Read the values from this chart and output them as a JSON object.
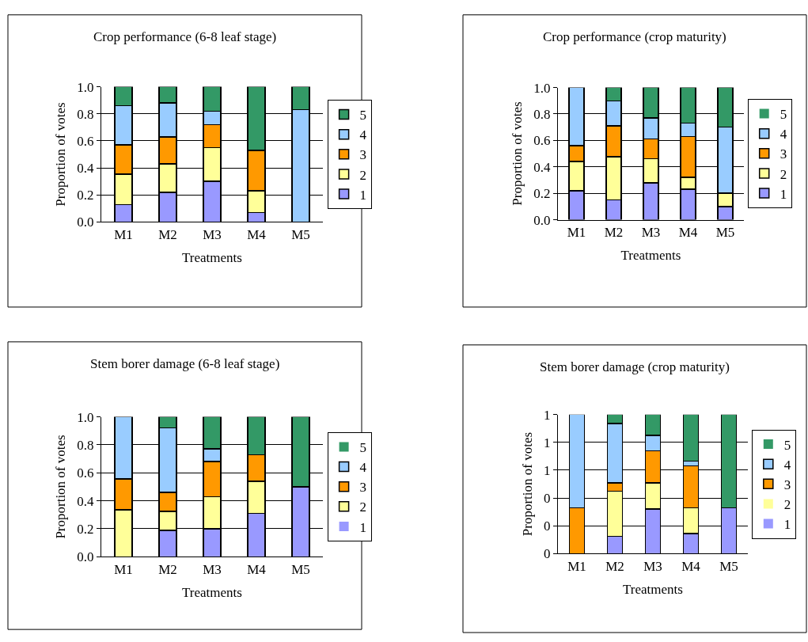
{
  "chart_data": [
    {
      "type": "bar",
      "title": "Crop performance (6-8 leaf stage)",
      "xlabel": "Treatments",
      "ylabel": "Proportion of votes",
      "categories": [
        "M1",
        "M2",
        "M3",
        "M4",
        "M5"
      ],
      "stacked": true,
      "ylim": [
        0,
        1
      ],
      "yticks": [
        {
          "value": 0,
          "label": "0.0"
        },
        0.2,
        0.4,
        0.6,
        0.8,
        {
          "value": 1,
          "label": "1.0"
        }
      ],
      "grid": "y",
      "legend": "right",
      "series": [
        {
          "name": "1",
          "color": "#9999ff",
          "values": [
            0.13,
            0.22,
            0.3,
            0.07,
            0
          ]
        },
        {
          "name": "2",
          "color": "#ffff99",
          "values": [
            0.225,
            0.21,
            0.25,
            0.16,
            0
          ]
        },
        {
          "name": "3",
          "color": "#ff9900",
          "values": [
            0.215,
            0.2,
            0.17,
            0.3,
            0
          ]
        },
        {
          "name": "4",
          "color": "#99ccff",
          "values": [
            0.29,
            0.25,
            0.1,
            0,
            0.83
          ]
        },
        {
          "name": "5",
          "color": "#339966",
          "values": [
            0.14,
            0.12,
            0.18,
            0.47,
            0.17
          ]
        }
      ]
    },
    {
      "type": "bar",
      "title": "Crop performance (crop maturity)",
      "xlabel": "Treatments",
      "ylabel": "Proportion of votes",
      "categories": [
        "M1",
        "M2",
        "M3",
        "M4",
        "M5"
      ],
      "stacked": true,
      "ylim": [
        0,
        1
      ],
      "yticks": [
        {
          "value": 0,
          "label": "0.0"
        },
        0.2,
        0.4,
        0.6,
        0.8,
        {
          "value": 1,
          "label": "1.0"
        }
      ],
      "grid": "y",
      "legend": "right",
      "series": [
        {
          "name": "1",
          "color": "#9999ff",
          "values": [
            0.22,
            0.15,
            0.28,
            0.23,
            0.1
          ]
        },
        {
          "name": "2",
          "color": "#ffff99",
          "values": [
            0.22,
            0.325,
            0.18,
            0.09,
            0.1
          ]
        },
        {
          "name": "3",
          "color": "#ff9900",
          "values": [
            0.12,
            0.235,
            0.15,
            0.31,
            0
          ]
        },
        {
          "name": "4",
          "color": "#99ccff",
          "values": [
            0.44,
            0.19,
            0.16,
            0.1,
            0.5
          ]
        },
        {
          "name": "5",
          "color": "#339966",
          "values": [
            0,
            0.1,
            0.23,
            0.27,
            0.3
          ]
        }
      ]
    },
    {
      "type": "bar",
      "title": "Stem borer damage (6-8 leaf stage)",
      "xlabel": "Treatments",
      "ylabel": "Proportion of votes",
      "categories": [
        "M1",
        "M2",
        "M3",
        "M4",
        "M5"
      ],
      "stacked": true,
      "ylim": [
        0,
        1
      ],
      "yticks": [
        {
          "value": 0,
          "label": "0.0"
        },
        0.2,
        0.4,
        0.6,
        0.8,
        {
          "value": 1,
          "label": "1.0"
        }
      ],
      "grid": "y",
      "legend": "right",
      "series": [
        {
          "name": "1",
          "color": "#9999ff",
          "values": [
            0,
            0.19,
            0.2,
            0.31,
            0.5
          ]
        },
        {
          "name": "2",
          "color": "#ffff99",
          "values": [
            0.335,
            0.135,
            0.23,
            0.23,
            0
          ]
        },
        {
          "name": "3",
          "color": "#ff9900",
          "values": [
            0.22,
            0.135,
            0.25,
            0.19,
            0
          ]
        },
        {
          "name": "4",
          "color": "#99ccff",
          "values": [
            0.445,
            0.46,
            0.09,
            0,
            0
          ]
        },
        {
          "name": "5",
          "color": "#339966",
          "values": [
            0,
            0.08,
            0.23,
            0.27,
            0.5
          ]
        }
      ]
    },
    {
      "type": "bar",
      "title": "Stem borer damage (crop maturity)",
      "xlabel": "Treatments",
      "ylabel": "Proportion of votes",
      "categories": [
        "M1",
        "M2",
        "M3",
        "M4",
        "M5"
      ],
      "stacked": true,
      "ylim": [
        0,
        1
      ],
      "yticks": [
        {
          "value": 0,
          "label": "0"
        },
        {
          "value": 0.2,
          "label": "0"
        },
        {
          "value": 0.4,
          "label": "0"
        },
        {
          "value": 0.6,
          "label": "1"
        },
        {
          "value": 0.8,
          "label": "1"
        },
        {
          "value": 1,
          "label": "1"
        }
      ],
      "grid": "y",
      "legend": "right",
      "series": [
        {
          "name": "1",
          "color": "#9999ff",
          "values": [
            0,
            0.125,
            0.32,
            0.145,
            0.33
          ]
        },
        {
          "name": "2",
          "color": "#ffff99",
          "values": [
            0,
            0.325,
            0.19,
            0.185,
            0
          ]
        },
        {
          "name": "3",
          "color": "#ff9900",
          "values": [
            0.33,
            0.06,
            0.23,
            0.3,
            0
          ]
        },
        {
          "name": "4",
          "color": "#99ccff",
          "values": [
            0.67,
            0.425,
            0.11,
            0.035,
            0
          ]
        },
        {
          "name": "5",
          "color": "#339966",
          "values": [
            0,
            0.065,
            0.15,
            0.335,
            0.67
          ]
        }
      ]
    }
  ]
}
